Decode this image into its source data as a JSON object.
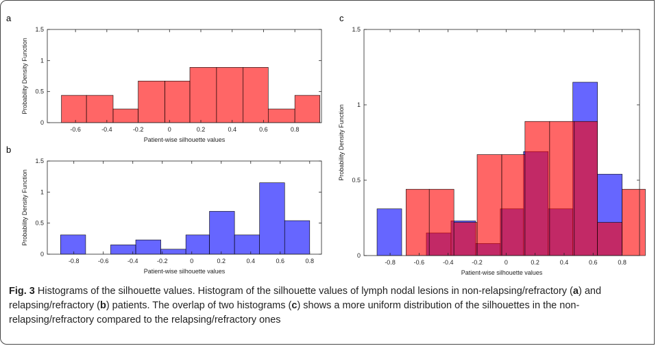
{
  "chart_data": [
    {
      "type": "histogram",
      "panel_label": "a",
      "xlabel": "Patient-wise silhouette values",
      "ylabel": "Probability Density Function",
      "alpha": 0.6,
      "series": [
        {
          "color": "#ff0000",
          "bins": [
            -0.69,
            -0.53,
            -0.36,
            -0.2,
            -0.03,
            0.13,
            0.3,
            0.47,
            0.63,
            0.8,
            0.96
          ],
          "values": [
            0.44,
            0.44,
            0.22,
            0.67,
            0.67,
            0.89,
            0.89,
            0.89,
            0.22,
            0.44
          ]
        }
      ],
      "xlim": [
        -0.78,
        0.97
      ],
      "xticks": [
        -0.6,
        -0.4,
        -0.2,
        0,
        0.2,
        0.4,
        0.6,
        0.8
      ],
      "ylim": [
        0,
        1.5
      ],
      "yticks": [
        0,
        0.5,
        1,
        1.5
      ]
    },
    {
      "type": "histogram",
      "panel_label": "b",
      "xlabel": "Patient-wise silhouette values",
      "ylabel": "Probability Density Function",
      "alpha": 0.6,
      "series": [
        {
          "color": "#0000ff",
          "bins": [
            -0.89,
            -0.72,
            -0.55,
            -0.38,
            -0.21,
            -0.04,
            0.12,
            0.29,
            0.46,
            0.63,
            0.8
          ],
          "values": [
            0.31,
            0,
            0.15,
            0.23,
            0.08,
            0.31,
            0.69,
            0.31,
            1.15,
            0.54
          ]
        }
      ],
      "xlim": [
        -0.98,
        0.88
      ],
      "xticks": [
        -0.8,
        -0.6,
        -0.4,
        -0.2,
        0,
        0.2,
        0.4,
        0.6,
        0.8
      ],
      "ylim": [
        0,
        1.5
      ],
      "yticks": [
        0,
        0.5,
        1,
        1.5
      ]
    },
    {
      "type": "histogram",
      "panel_label": "c",
      "xlabel": "Patient-wise silhouette values",
      "ylabel": "Probability Density Function",
      "alpha": 0.6,
      "series": [
        {
          "color": "#0000ff",
          "bins": [
            -0.89,
            -0.72,
            -0.55,
            -0.38,
            -0.21,
            -0.04,
            0.12,
            0.29,
            0.46,
            0.63,
            0.8
          ],
          "values": [
            0.31,
            0,
            0.15,
            0.23,
            0.08,
            0.31,
            0.69,
            0.31,
            1.15,
            0.54
          ]
        },
        {
          "color": "#ff0000",
          "bins": [
            -0.69,
            -0.53,
            -0.36,
            -0.2,
            -0.03,
            0.13,
            0.3,
            0.47,
            0.63,
            0.8,
            0.96
          ],
          "values": [
            0.44,
            0.44,
            0.22,
            0.67,
            0.67,
            0.89,
            0.89,
            0.89,
            0.22,
            0.44
          ]
        }
      ],
      "xlim": [
        -0.98,
        0.92
      ],
      "xticks": [
        -0.8,
        -0.6,
        -0.4,
        -0.2,
        0,
        0.2,
        0.4,
        0.6,
        0.8
      ],
      "ylim": [
        0,
        1.5
      ],
      "yticks": [
        0,
        0.5,
        1,
        1.5
      ]
    }
  ],
  "caption": [
    {
      "text": "Fig. 3",
      "bold": true
    },
    {
      "text": " Histograms of the silhouette values. Histogram of the silhouette values of lymph nodal lesions in non-relapsing/refractory ("
    },
    {
      "text": "a",
      "bold": true
    },
    {
      "text": ") and relapsing/refractory ("
    },
    {
      "text": "b",
      "bold": true
    },
    {
      "text": ") patients. The overlap of two histograms ("
    },
    {
      "text": "c",
      "bold": true
    },
    {
      "text": ") shows a more uniform distribution of the silhouettes in the non-relapsing/refractory compared to the relapsing/refractory ones"
    }
  ]
}
